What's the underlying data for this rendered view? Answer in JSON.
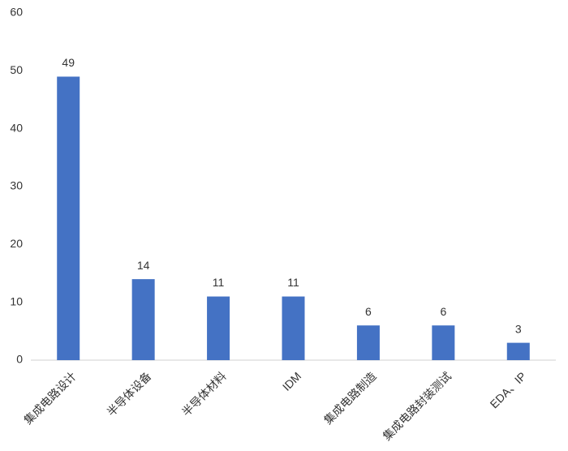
{
  "chart_data": {
    "type": "bar",
    "categories": [
      "集成电路设计",
      "半导体设备",
      "半导体材料",
      "IDM",
      "集成电路制造",
      "集成电路封装测试",
      "EDA、IP"
    ],
    "values": [
      49,
      14,
      11,
      11,
      6,
      6,
      3
    ],
    "color": "#4472c4",
    "ylim": [
      0,
      60
    ],
    "yticks": [
      0,
      10,
      20,
      30,
      40,
      50,
      60
    ],
    "grid": false
  }
}
